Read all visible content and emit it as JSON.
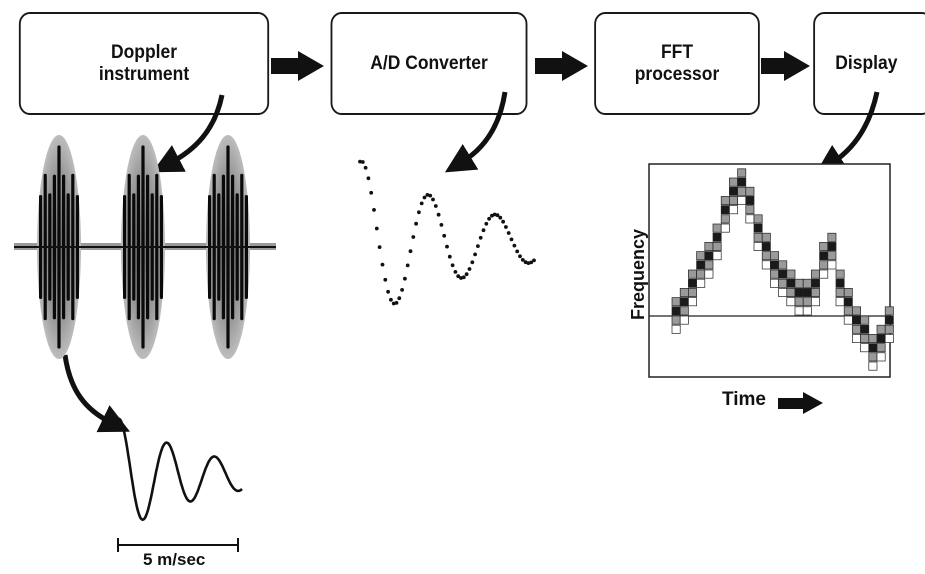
{
  "blocks": {
    "doppler": "Doppler\ninstrument",
    "adc": "A/D Converter",
    "fft": "FFT\nprocessor",
    "display": "Display"
  },
  "labels": {
    "scale": "5 m/sec",
    "frequency_axis": "Frequency",
    "time_axis": "Time"
  },
  "colors": {
    "ink": "#111111",
    "cell_dark": "#1a1a1a",
    "cell_mid": "#9a9a9a",
    "cell_light": "#ffffff"
  },
  "icons": [
    "right-arrow-icon",
    "curved-arrow-icon"
  ]
}
